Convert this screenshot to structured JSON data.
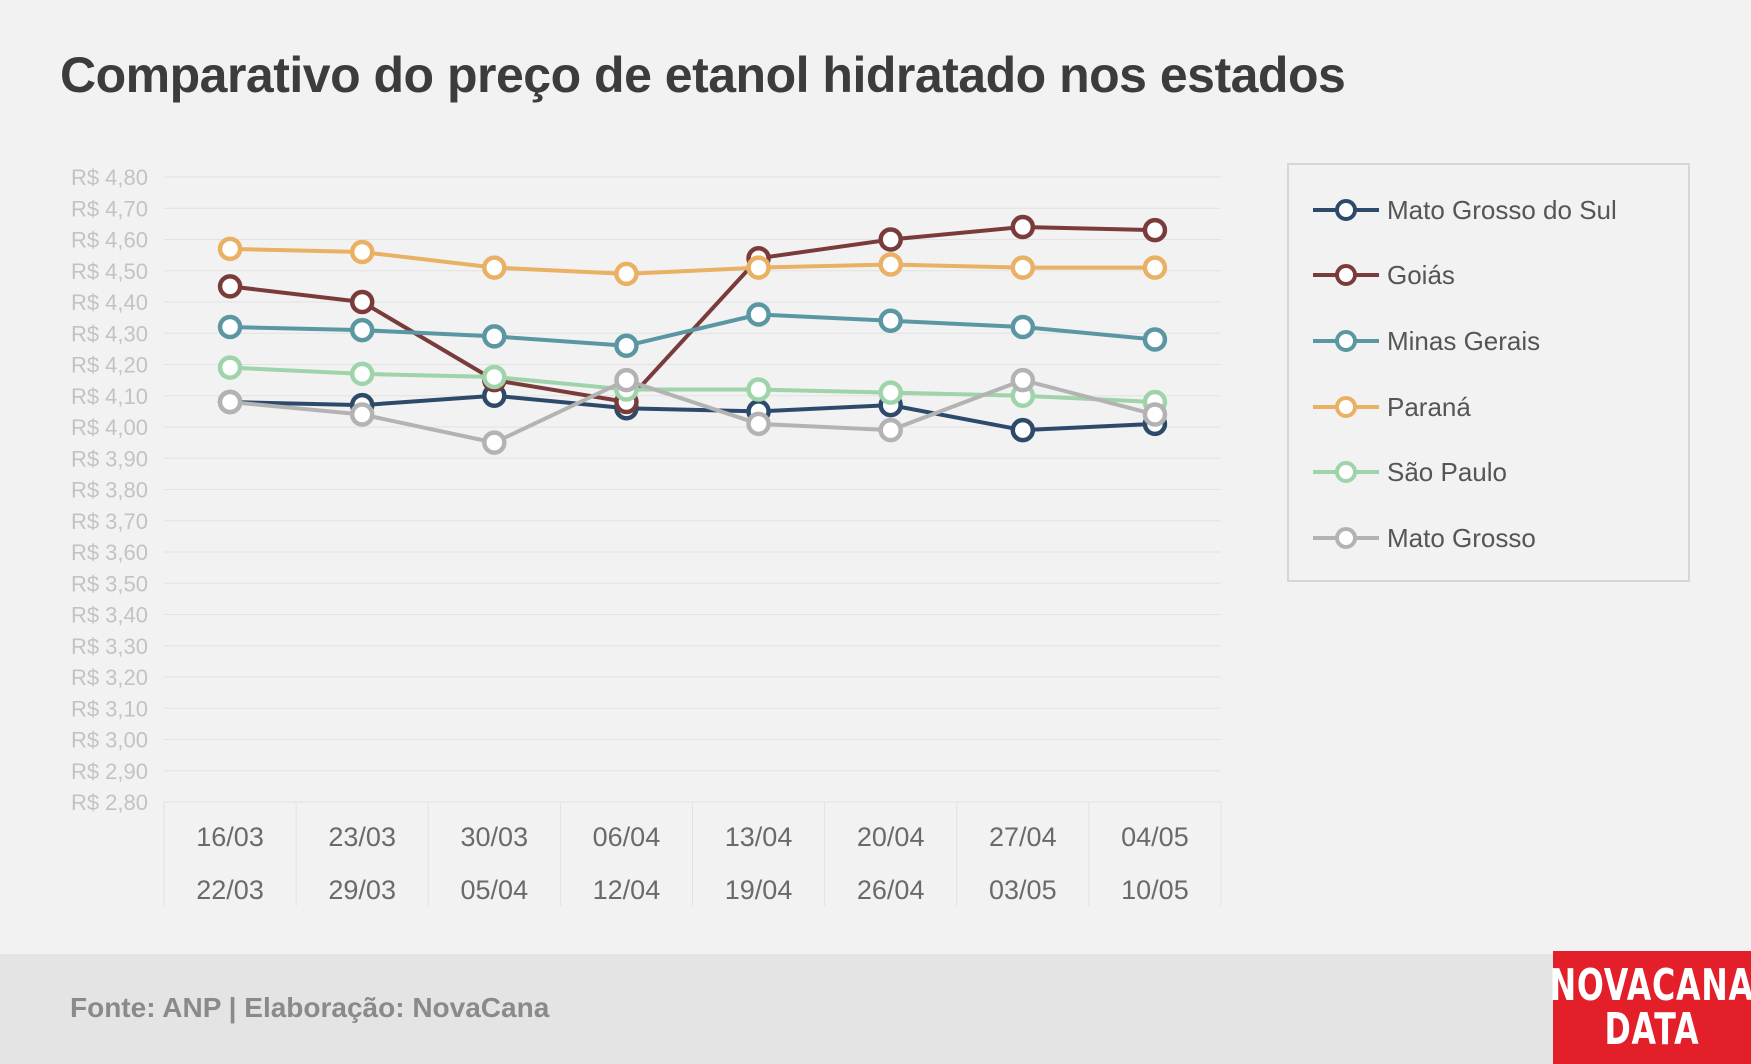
{
  "title": "Comparativo do preço de etanol hidratado nos estados",
  "source": "Fonte: ANP | Elaboração: NovaCana",
  "logo": {
    "line1": "NOVACANA",
    "line2": "DATA"
  },
  "colors": {
    "background": "#f2f2f2",
    "grid": "#e2e2e2",
    "tick_text": "#c3c3c3",
    "category_text": "#6a6a6a",
    "logo_red": "#e3202a"
  },
  "chart_data": {
    "type": "line",
    "title": "Comparativo do preço de etanol hidratado nos estados",
    "xlabel": "",
    "ylabel": "",
    "ylim": [
      2.8,
      4.8
    ],
    "y_tick_step": 0.1,
    "y_tick_labels": [
      "R$ 4,80",
      "R$ 4,70",
      "R$ 4,60",
      "R$ 4,50",
      "R$ 4,40",
      "R$ 4,30",
      "R$ 4,20",
      "R$ 4,10",
      "R$ 4,00",
      "R$ 3,90",
      "R$ 3,80",
      "R$ 3,70",
      "R$ 3,60",
      "R$ 3,50",
      "R$ 3,40",
      "R$ 3,30",
      "R$ 3,20",
      "R$ 3,10",
      "R$ 3,00",
      "R$ 2,90",
      "R$ 2,80"
    ],
    "grid": true,
    "legend_position": "right",
    "categories": [
      {
        "line1": "16/03",
        "line2": "22/03"
      },
      {
        "line1": "23/03",
        "line2": "29/03"
      },
      {
        "line1": "30/03",
        "line2": "05/04"
      },
      {
        "line1": "06/04",
        "line2": "12/04"
      },
      {
        "line1": "13/04",
        "line2": "19/04"
      },
      {
        "line1": "20/04",
        "line2": "26/04"
      },
      {
        "line1": "27/04",
        "line2": "03/05"
      },
      {
        "line1": "04/05",
        "line2": "10/05"
      }
    ],
    "series": [
      {
        "name": "Mato Grosso do Sul",
        "color": "#2e4a6b",
        "values": [
          4.08,
          4.07,
          4.1,
          4.06,
          4.05,
          4.07,
          3.99,
          4.01
        ]
      },
      {
        "name": "Goiás",
        "color": "#7a3b3b",
        "values": [
          4.45,
          4.4,
          4.15,
          4.08,
          4.54,
          4.6,
          4.64,
          4.63
        ]
      },
      {
        "name": "Minas Gerais",
        "color": "#5b96a3",
        "values": [
          4.32,
          4.31,
          4.29,
          4.26,
          4.36,
          4.34,
          4.32,
          4.28
        ]
      },
      {
        "name": "Paraná",
        "color": "#eab064",
        "values": [
          4.57,
          4.56,
          4.51,
          4.49,
          4.51,
          4.52,
          4.51,
          4.51
        ]
      },
      {
        "name": "São Paulo",
        "color": "#9fd3a9",
        "values": [
          4.19,
          4.17,
          4.16,
          4.12,
          4.12,
          4.11,
          4.1,
          4.08
        ]
      },
      {
        "name": "Mato Grosso",
        "color": "#b3b3b3",
        "values": [
          4.08,
          4.04,
          3.95,
          4.15,
          4.01,
          3.99,
          4.15,
          4.04
        ]
      }
    ]
  }
}
